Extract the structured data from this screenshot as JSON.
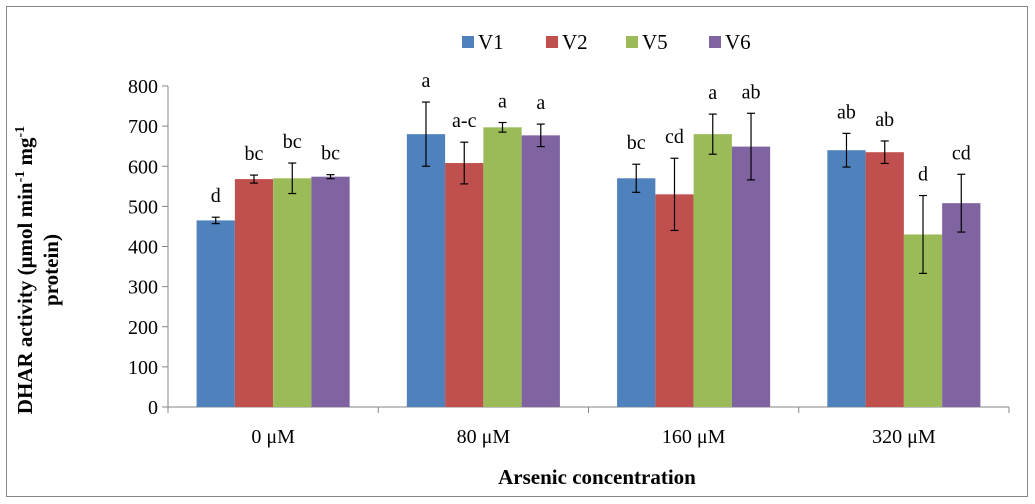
{
  "chart_data": {
    "type": "bar",
    "title": "",
    "xlabel": "Arsenic concentration",
    "ylabel_parts": [
      "DHAR activity (μmol min",
      "-1",
      " mg",
      "-1"
    ],
    "ylabel_line2": "protein)",
    "categories": [
      "0 μM",
      "80 μM",
      "160 μM",
      "320 μM"
    ],
    "ylim": [
      0,
      800
    ],
    "yticks": [
      0,
      100,
      200,
      300,
      400,
      500,
      600,
      700,
      800
    ],
    "grid": false,
    "legend_position": "top",
    "series": [
      {
        "name": "V1",
        "color": "#4f81bd",
        "values": [
          465,
          680,
          570,
          640
        ],
        "errors": [
          8,
          80,
          35,
          42
        ],
        "labels": [
          "d",
          "a",
          "bc",
          "ab"
        ]
      },
      {
        "name": "V2",
        "color": "#c0504d",
        "values": [
          568,
          608,
          530,
          635
        ],
        "errors": [
          10,
          52,
          90,
          28
        ],
        "labels": [
          "bc",
          "a-c",
          "cd",
          "ab"
        ]
      },
      {
        "name": "V5",
        "color": "#9bbb59",
        "values": [
          570,
          697,
          680,
          430
        ],
        "errors": [
          38,
          12,
          50,
          97
        ],
        "labels": [
          "bc",
          "a",
          "a",
          "d"
        ]
      },
      {
        "name": "V6",
        "color": "#8064a2",
        "values": [
          574,
          677,
          649,
          508
        ],
        "errors": [
          5,
          28,
          83,
          72
        ],
        "labels": [
          "bc",
          "a",
          "ab",
          "cd"
        ]
      }
    ]
  }
}
